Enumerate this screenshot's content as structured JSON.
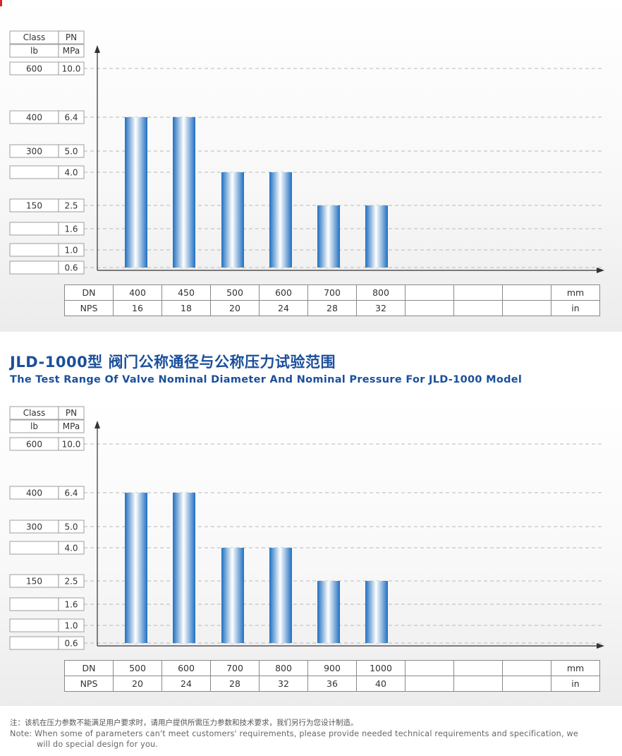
{
  "colors": {
    "accent": "#1b4f9b",
    "bar_dark": "#1f6fc0",
    "bar_light": "#ffffff"
  },
  "heading": {
    "title_cn": "JLD-1000型 阀门公称通径与公称压力试验范围",
    "title_en": "The Test Range Of Valve Nominal Diameter And Nominal Pressure For JLD-1000 Model"
  },
  "note": {
    "cn": "注：该机在压力参数不能满足用户要求时，请用户提供所需压力参数和技术要求，我们另行为您设计制造。",
    "en_line1": "Note: When some of parameters can't meet customers' requirements, please provide needed technical requirements and specification, we",
    "en_line2": "will do special design for you."
  },
  "chart_data": [
    {
      "type": "bar",
      "header": {
        "class_label": "Class",
        "pn_label": "PN",
        "lb_label": "lb",
        "mpa_label": "MPa"
      },
      "y_ticks": [
        {
          "class": "600",
          "pn": "10.0",
          "value": 10.0
        },
        {
          "class": "400",
          "pn": "6.4",
          "value": 6.4
        },
        {
          "class": "300",
          "pn": "5.0",
          "value": 5.0
        },
        {
          "class": "",
          "pn": "4.0",
          "value": 4.0
        },
        {
          "class": "150",
          "pn": "2.5",
          "value": 2.5
        },
        {
          "class": "",
          "pn": "1.6",
          "value": 1.6
        },
        {
          "class": "",
          "pn": "1.0",
          "value": 1.0
        },
        {
          "class": "",
          "pn": "0.6",
          "value": 0.6
        }
      ],
      "dn_label": "DN",
      "nps_label": "NPS",
      "dn_unit": "mm",
      "nps_unit": "in",
      "dn": [
        "400",
        "450",
        "500",
        "600",
        "700",
        "800",
        "",
        "",
        ""
      ],
      "nps": [
        "16",
        "18",
        "20",
        "24",
        "28",
        "32",
        "",
        "",
        ""
      ],
      "values": [
        6.4,
        6.4,
        4.0,
        4.0,
        2.5,
        2.5
      ],
      "base_value": 0.6
    },
    {
      "type": "bar",
      "header": {
        "class_label": "Class",
        "pn_label": "PN",
        "lb_label": "lb",
        "mpa_label": "MPa"
      },
      "y_ticks": [
        {
          "class": "600",
          "pn": "10.0",
          "value": 10.0
        },
        {
          "class": "400",
          "pn": "6.4",
          "value": 6.4
        },
        {
          "class": "300",
          "pn": "5.0",
          "value": 5.0
        },
        {
          "class": "",
          "pn": "4.0",
          "value": 4.0
        },
        {
          "class": "150",
          "pn": "2.5",
          "value": 2.5
        },
        {
          "class": "",
          "pn": "1.6",
          "value": 1.6
        },
        {
          "class": "",
          "pn": "1.0",
          "value": 1.0
        },
        {
          "class": "",
          "pn": "0.6",
          "value": 0.6
        }
      ],
      "dn_label": "DN",
      "nps_label": "NPS",
      "dn_unit": "mm",
      "nps_unit": "in",
      "dn": [
        "500",
        "600",
        "700",
        "800",
        "900",
        "1000",
        "",
        "",
        ""
      ],
      "nps": [
        "20",
        "24",
        "28",
        "32",
        "36",
        "40",
        "",
        "",
        ""
      ],
      "values": [
        6.4,
        6.4,
        4.0,
        4.0,
        2.5,
        2.5
      ],
      "base_value": 0.6
    }
  ]
}
